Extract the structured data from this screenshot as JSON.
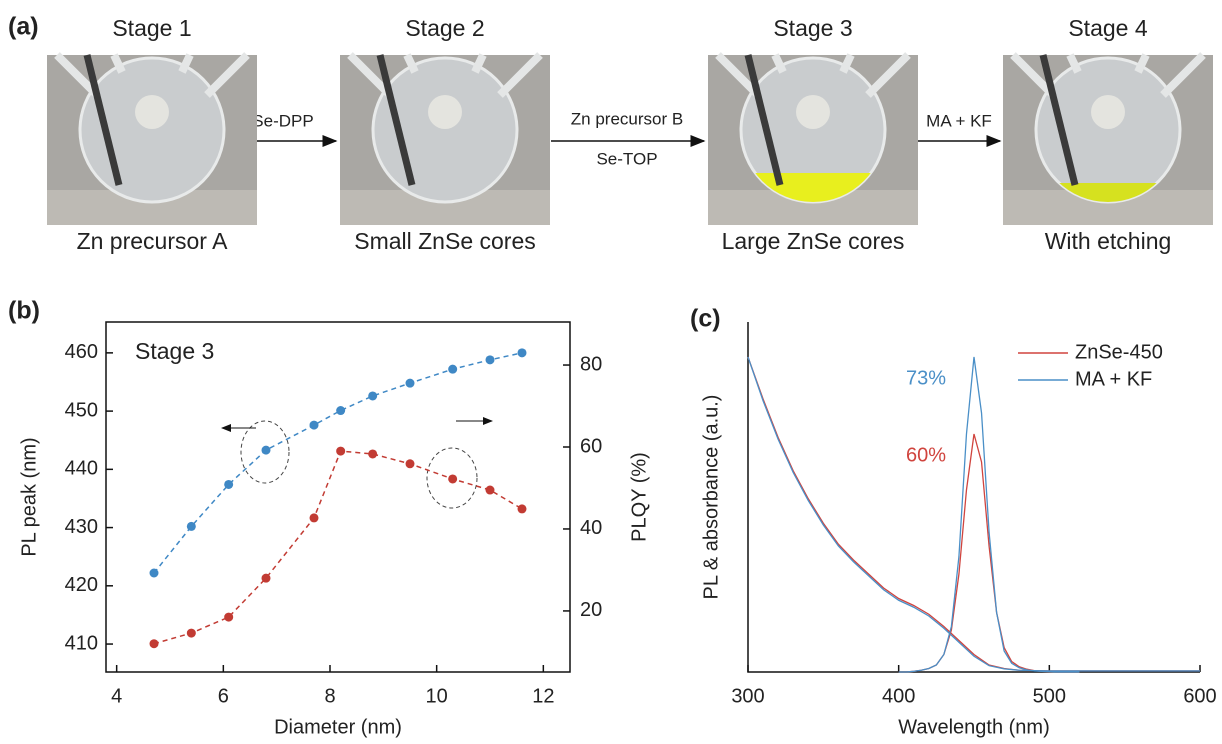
{
  "panel_a": {
    "label": "(a)",
    "stages": [
      {
        "title": "Stage 1",
        "caption": "Zn precursor A"
      },
      {
        "title": "Stage 2",
        "caption": "Small ZnSe cores"
      },
      {
        "title": "Stage 3",
        "caption": "Large ZnSe cores"
      },
      {
        "title": "Stage 4",
        "caption": "With etching"
      }
    ],
    "steps": [
      {
        "above": "Se-DPP"
      },
      {
        "above": "Zn precursor B",
        "below": "Se-TOP"
      },
      {
        "above": "MA + KF"
      }
    ]
  },
  "chart_data": [
    {
      "type": "line",
      "label": "(b)",
      "annotation": "Stage 3",
      "xlabel": "Diameter (nm)",
      "ylabel": "PL peak (nm)",
      "y2label": "PLQY (%)",
      "x": [
        4.7,
        5.4,
        6.1,
        6.8,
        7.7,
        8.2,
        8.8,
        9.5,
        10.3,
        11.0,
        11.6
      ],
      "xlim": [
        3.8,
        12.5
      ],
      "xticks": [
        4,
        6,
        8,
        10,
        12
      ],
      "ylim": [
        405.2,
        465.3
      ],
      "yticks": [
        410,
        420,
        430,
        440,
        450,
        460
      ],
      "y2lim": [
        5.1,
        90.5
      ],
      "y2ticks": [
        20,
        40,
        60,
        80
      ],
      "series": [
        {
          "color": "#3f88c5",
          "values": [
            422.2,
            430.2,
            437.4,
            443.3,
            447.6,
            450.1,
            452.6,
            454.8,
            457.2,
            458.8,
            460.0
          ]
        },
        {
          "color": "#c23b33",
          "axis": "y2",
          "values": [
            12.0,
            14.6,
            18.5,
            28.0,
            42.7,
            59.0,
            58.3,
            55.9,
            52.2,
            49.5,
            44.9
          ]
        }
      ]
    },
    {
      "type": "spectrum",
      "label": "(c)",
      "xlabel": "Wavelength (nm)",
      "ylabel": "PL & absorbance (a.u.)",
      "xlim": [
        300,
        600
      ],
      "xticks": [
        300,
        400,
        500,
        600
      ],
      "ylim": [
        0,
        1
      ],
      "legend": "upper right",
      "x": [
        300,
        310,
        320,
        330,
        340,
        350,
        360,
        370,
        380,
        390,
        400,
        410,
        420,
        430,
        440,
        450,
        460,
        470,
        480,
        490,
        500,
        510,
        520,
        530,
        540,
        550,
        560,
        570,
        580,
        590,
        600
      ],
      "pl_x": [
        400,
        405,
        410,
        415,
        420,
        425,
        430,
        435,
        440,
        445,
        450,
        455,
        460,
        465,
        470,
        475,
        480,
        485,
        490,
        495,
        500,
        505,
        510,
        515,
        520
      ],
      "series": [
        {
          "name": "ZnSe-450",
          "color": "#d0443e",
          "label": "60%",
          "absorbance": [
            0.9,
            0.78,
            0.67,
            0.575,
            0.495,
            0.425,
            0.365,
            0.32,
            0.28,
            0.24,
            0.21,
            0.19,
            0.165,
            0.13,
            0.09,
            0.05,
            0.02,
            0.01,
            0.005,
            0.004,
            0.003,
            0.003,
            0.003,
            0.003,
            0.003,
            0.003,
            0.003,
            0.003,
            0.003,
            0.003,
            0.003
          ],
          "pl": [
            0,
            0,
            0.002,
            0.005,
            0.01,
            0.02,
            0.05,
            0.12,
            0.28,
            0.52,
            0.68,
            0.6,
            0.36,
            0.17,
            0.07,
            0.03,
            0.015,
            0.008,
            0.004,
            0.002,
            0.001,
            0,
            0,
            0,
            0
          ]
        },
        {
          "name": "MA + KF",
          "color": "#4a8fc7",
          "label": "73%",
          "absorbance": [
            0.9,
            0.775,
            0.665,
            0.57,
            0.49,
            0.42,
            0.36,
            0.315,
            0.275,
            0.235,
            0.205,
            0.185,
            0.16,
            0.125,
            0.085,
            0.045,
            0.018,
            0.009,
            0.005,
            0.004,
            0.003,
            0.003,
            0.003,
            0.003,
            0.003,
            0.003,
            0.003,
            0.003,
            0.003,
            0.003,
            0.003
          ],
          "pl": [
            0,
            0,
            0.002,
            0.005,
            0.01,
            0.02,
            0.05,
            0.13,
            0.33,
            0.68,
            0.9,
            0.74,
            0.4,
            0.17,
            0.06,
            0.025,
            0.012,
            0.006,
            0.003,
            0.002,
            0.001,
            0,
            0,
            0,
            0
          ]
        }
      ]
    }
  ]
}
